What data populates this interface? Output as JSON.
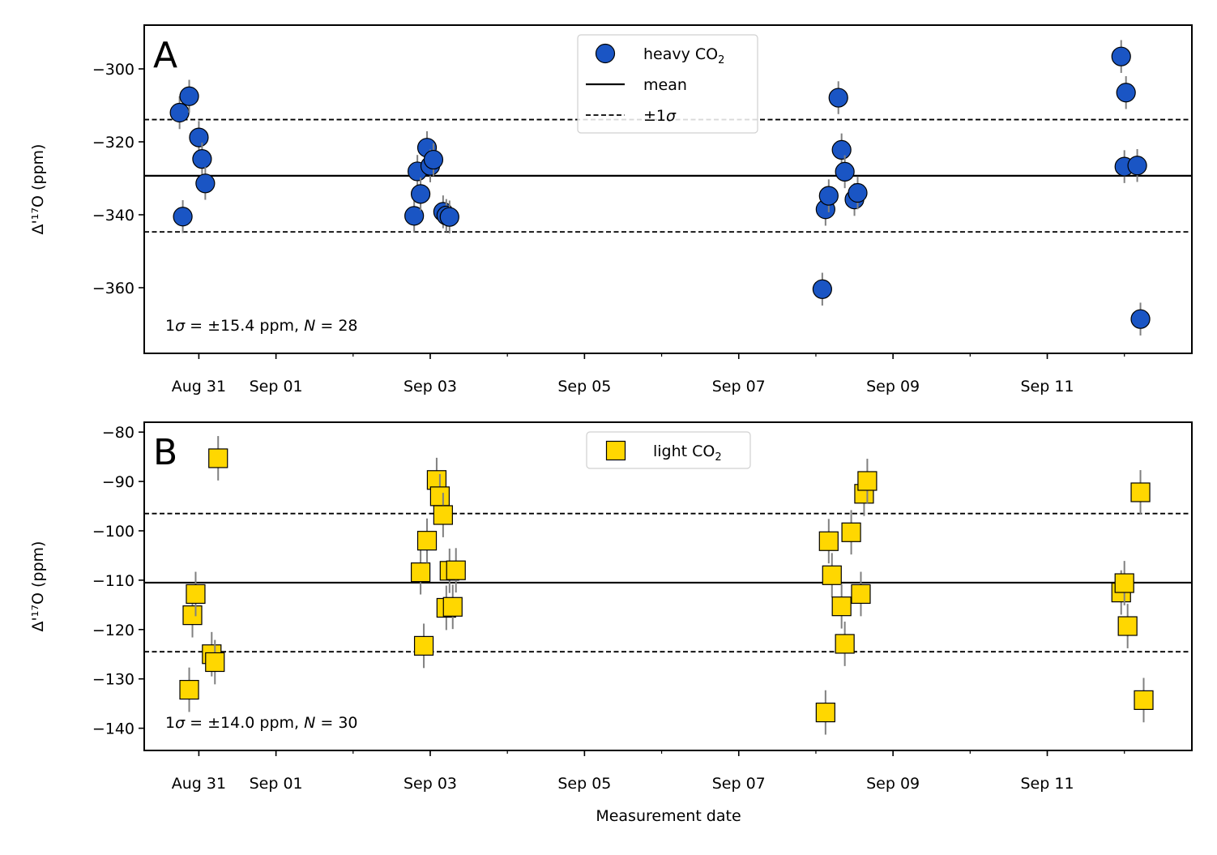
{
  "figure": {
    "xlabel": "Measurement date"
  },
  "chart_data": [
    {
      "type": "scatter",
      "panel_label": "A",
      "ylabel": "Δ'¹⁷O (ppm)",
      "ylim": [
        -378,
        -288
      ],
      "yticks": [
        -300,
        -320,
        -340,
        -360
      ],
      "ytick_labels": [
        "−300",
        "−320",
        "−340",
        "−360"
      ],
      "xlim": [
        "2023-08-30T07:00",
        "2023-09-12T21:00"
      ],
      "xticks": [
        "2023-08-31",
        "2023-09-01",
        "2023-09-03",
        "2023-09-05",
        "2023-09-07",
        "2023-09-09",
        "2023-09-11"
      ],
      "xtick_labels": [
        "Aug 31",
        "Sep 01",
        "Sep 03",
        "Sep 05",
        "Sep 07",
        "Sep 09",
        "Sep 11"
      ],
      "mean": -329.3,
      "sigma": 15.4,
      "stats_label": {
        "prefix": "1",
        "sigma": "σ",
        "mid": " = ±15.4 ppm, ",
        "n": "N",
        "suffix": " = 28"
      },
      "legend": [
        {
          "label": "heavy CO",
          "sub": "2",
          "kind": "marker"
        },
        {
          "label": "mean",
          "kind": "solid-line"
        },
        {
          "label": "±1",
          "italic_suffix": "σ",
          "kind": "dashed-line"
        }
      ],
      "legend_position": "top-center",
      "marker": "circle",
      "marker_color": "#1a55c4",
      "series": [
        {
          "name": "heavy CO2",
          "x": [
            "2023-08-30T18:00",
            "2023-08-30T19:00",
            "2023-08-30T21:00",
            "2023-08-31T00:00",
            "2023-08-31T01:00",
            "2023-08-31T02:00",
            "2023-09-02T19:00",
            "2023-09-02T20:00",
            "2023-09-02T21:00",
            "2023-09-02T23:00",
            "2023-09-03T00:00",
            "2023-09-03T01:00",
            "2023-09-03T04:00",
            "2023-09-03T05:00",
            "2023-09-03T06:00",
            "2023-09-08T02:00",
            "2023-09-08T03:00",
            "2023-09-08T04:00",
            "2023-09-08T07:00",
            "2023-09-08T08:00",
            "2023-09-08T09:00",
            "2023-09-08T12:00",
            "2023-09-08T13:00",
            "2023-09-11T23:00",
            "2023-09-12T00:00",
            "2023-09-12T00:30",
            "2023-09-12T04:00",
            "2023-09-12T05:00"
          ],
          "y": [
            -312,
            -340.5,
            -307.5,
            -318.8,
            -324.7,
            -331.4,
            -340.3,
            -328.1,
            -334.3,
            -321.6,
            -326.6,
            -324.9,
            -339.2,
            -340.2,
            -340.6,
            -360.4,
            -338.5,
            -334.8,
            -307.9,
            -322.2,
            -328.2,
            -335.8,
            -334.0,
            -296.6,
            -326.8,
            -306.5,
            -326.5,
            -368.6
          ],
          "yerr": [
            4.5,
            4.5,
            4.5,
            4.5,
            4.5,
            4.5,
            4.5,
            4.5,
            4.5,
            4.5,
            4.5,
            4.5,
            4.5,
            4.5,
            4.5,
            4.5,
            4.5,
            4.5,
            4.5,
            4.5,
            4.5,
            4.5,
            4.5,
            4.5,
            4.5,
            4.5,
            4.5,
            4.5
          ]
        }
      ]
    },
    {
      "type": "scatter",
      "panel_label": "B",
      "ylabel": "Δ'¹⁷O (ppm)",
      "ylim": [
        -144.5,
        -78
      ],
      "yticks": [
        -80,
        -90,
        -100,
        -110,
        -120,
        -130,
        -140
      ],
      "ytick_labels": [
        "−80",
        "−90",
        "−100",
        "−110",
        "−120",
        "−130",
        "−140"
      ],
      "xlim": [
        "2023-08-30T07:00",
        "2023-09-12T21:00"
      ],
      "xticks": [
        "2023-08-31",
        "2023-09-01",
        "2023-09-03",
        "2023-09-05",
        "2023-09-07",
        "2023-09-09",
        "2023-09-11"
      ],
      "xtick_labels": [
        "Aug 31",
        "Sep 01",
        "Sep 03",
        "Sep 05",
        "Sep 07",
        "Sep 09",
        "Sep 11"
      ],
      "mean": -110.5,
      "sigma": 14.0,
      "stats_label": {
        "prefix": "1",
        "sigma": "σ",
        "mid": " = ±14.0 ppm, ",
        "n": "N",
        "suffix": " = 30"
      },
      "legend": [
        {
          "label": "light CO",
          "sub": "2",
          "kind": "marker"
        }
      ],
      "legend_position": "top-center",
      "marker": "square",
      "marker_color": "#ffd700",
      "series": [
        {
          "name": "light CO2",
          "x": [
            "2023-08-30T21:00",
            "2023-08-30T22:00",
            "2023-08-30T23:00",
            "2023-08-31T04:00",
            "2023-08-31T05:00",
            "2023-08-31T06:00",
            "2023-09-02T21:00",
            "2023-09-02T22:00",
            "2023-09-02T23:00",
            "2023-09-03T02:00",
            "2023-09-03T03:00",
            "2023-09-03T04:00",
            "2023-09-03T05:00",
            "2023-09-03T06:00",
            "2023-09-03T07:00",
            "2023-09-03T08:00",
            "2023-09-08T03:00",
            "2023-09-08T04:00",
            "2023-09-08T05:00",
            "2023-09-08T08:00",
            "2023-09-08T09:00",
            "2023-09-08T11:00",
            "2023-09-08T14:00",
            "2023-09-08T15:00",
            "2023-09-08T16:00",
            "2023-09-11T23:00",
            "2023-09-12T00:00",
            "2023-09-12T01:00",
            "2023-09-12T05:00",
            "2023-09-12T06:00"
          ],
          "y": [
            -132.2,
            -117.1,
            -112.8,
            -125.0,
            -126.6,
            -85.3,
            -108.4,
            -123.3,
            -102.0,
            -89.7,
            -93.0,
            -96.8,
            -115.6,
            -108.1,
            -115.4,
            -108.0,
            -136.8,
            -102.1,
            -109.0,
            -115.3,
            -122.9,
            -100.3,
            -112.8,
            -92.5,
            -89.9,
            -112.5,
            -110.6,
            -119.3,
            -92.2,
            -134.3
          ],
          "yerr": [
            4.5,
            4.5,
            4.5,
            4.5,
            4.5,
            4.5,
            4.5,
            4.5,
            4.5,
            4.5,
            4.5,
            4.5,
            4.5,
            4.5,
            4.5,
            4.5,
            4.5,
            4.5,
            4.5,
            4.5,
            4.5,
            4.5,
            4.5,
            4.5,
            4.5,
            4.5,
            4.5,
            4.5,
            4.5,
            4.5
          ]
        }
      ]
    }
  ]
}
